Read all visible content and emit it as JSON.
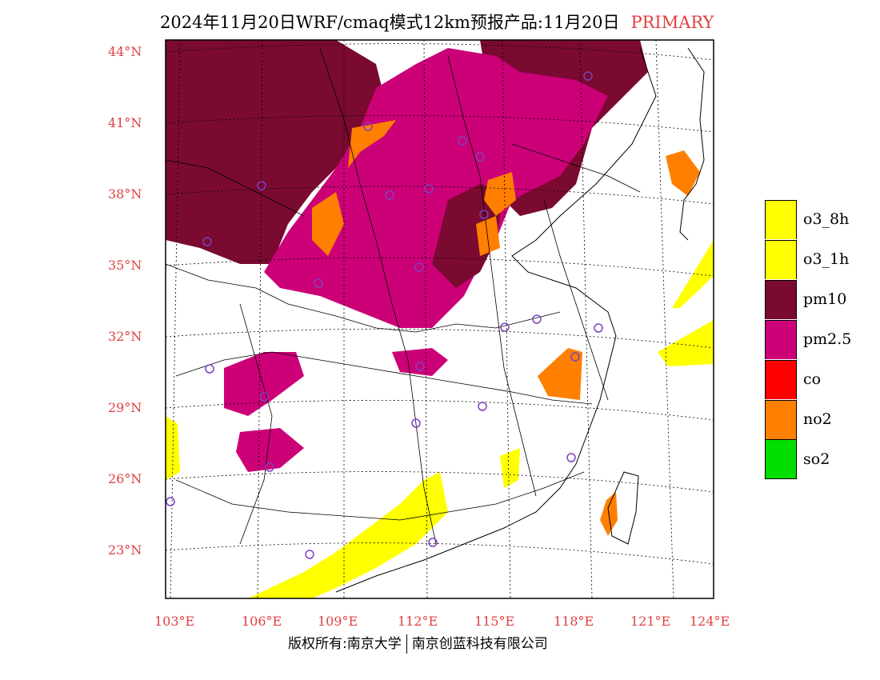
{
  "title": {
    "main": "2024年11月20日WRF/cmaq模式12km预报产品:11月20日",
    "tag": "PRIMARY"
  },
  "colors": {
    "o3_8h": "#ffff00",
    "o3_1h": "#ffff00",
    "pm10": "#7a0a30",
    "pm2_5": "#cc0077",
    "co": "#ff0000",
    "no2": "#ff7f00",
    "so2": "#00dd00"
  },
  "latitude_labels": [
    "44°N",
    "41°N",
    "38°N",
    "35°N",
    "32°N",
    "29°N",
    "26°N",
    "23°N"
  ],
  "longitude_labels": [
    "103°E",
    "106°E",
    "109°E",
    "112°E",
    "115°E",
    "118°E",
    "121°E",
    "124°E"
  ],
  "legend": [
    {
      "label": "o3_8h",
      "color": "#ffff00"
    },
    {
      "label": "o3_1h",
      "color": "#ffff00"
    },
    {
      "label": "pm10",
      "color": "#7a0a30"
    },
    {
      "label": "pm2.5",
      "color": "#cc0077"
    },
    {
      "label": "co",
      "color": "#ff0000"
    },
    {
      "label": "no2",
      "color": "#ff7f00"
    },
    {
      "label": "so2",
      "color": "#00dd00"
    }
  ],
  "copyright": {
    "left": "版权所有:南京大学",
    "right": "南京创蓝科技有限公司"
  }
}
